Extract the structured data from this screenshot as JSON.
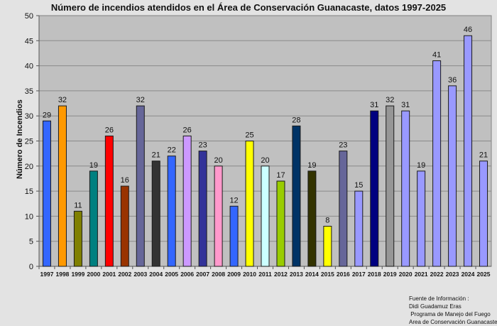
{
  "chart_data": {
    "type": "bar",
    "title": "Número de incendios atendidos en el Área de Conservación Guanacaste, datos 1997-2025",
    "xlabel": "",
    "ylabel": "Número de Incendios",
    "ylim": [
      0,
      50
    ],
    "yticks": [
      0,
      5,
      10,
      15,
      20,
      25,
      30,
      35,
      40,
      45,
      50
    ],
    "grid": true,
    "categories": [
      "1997",
      "1998",
      "1999",
      "2000",
      "2001",
      "2002",
      "2003",
      "2004",
      "2005",
      "2006",
      "2007",
      "2008",
      "2009",
      "2010",
      "2011",
      "2012",
      "2013",
      "2014",
      "2015",
      "2016",
      "2017",
      "2018",
      "2019",
      "2020",
      "2021",
      "2022",
      "2023",
      "2024",
      "2025"
    ],
    "values": [
      29,
      32,
      11,
      19,
      26,
      16,
      32,
      21,
      22,
      26,
      23,
      20,
      12,
      25,
      20,
      17,
      28,
      19,
      8,
      23,
      15,
      31,
      32,
      31,
      19,
      41,
      36,
      46,
      21
    ],
    "colors": [
      "#3366ff",
      "#ff9900",
      "#808000",
      "#008080",
      "#ff0000",
      "#993300",
      "#666699",
      "#333333",
      "#3366ff",
      "#cc99ff",
      "#333399",
      "#ff99cc",
      "#3366ff",
      "#ffff00",
      "#ccffff",
      "#99cc00",
      "#003366",
      "#333300",
      "#ffff00",
      "#666699",
      "#9999ff",
      "#000080",
      "#969696",
      "#9999ff",
      "#9999ff",
      "#9999ff",
      "#9999ff",
      "#9999ff",
      "#9999ff"
    ],
    "plot_background": "#c0c0c0"
  },
  "source": {
    "lines": [
      "Fuente de Información :",
      "Didi Guadamuz Eras",
      " Programa de Manejo del Fuego",
      "Area de Conservación Guanacaste"
    ]
  }
}
